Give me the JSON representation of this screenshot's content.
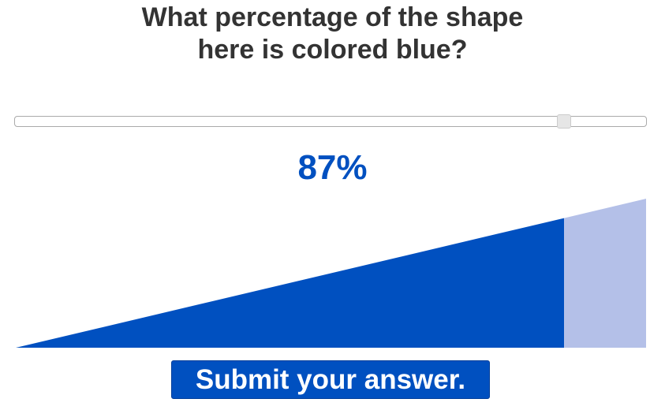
{
  "question": {
    "text": "What percentage of the shape here is colored blue?"
  },
  "slider": {
    "value_percent": 87
  },
  "answer": {
    "display": "87%"
  },
  "shape": {
    "filled_fraction": 0.87,
    "filled_color": "#0050c0",
    "unfilled_color": "#b4c0e8"
  },
  "submit": {
    "label": "Submit your answer."
  },
  "colors": {
    "accent": "#0050c0",
    "text": "#333333"
  }
}
